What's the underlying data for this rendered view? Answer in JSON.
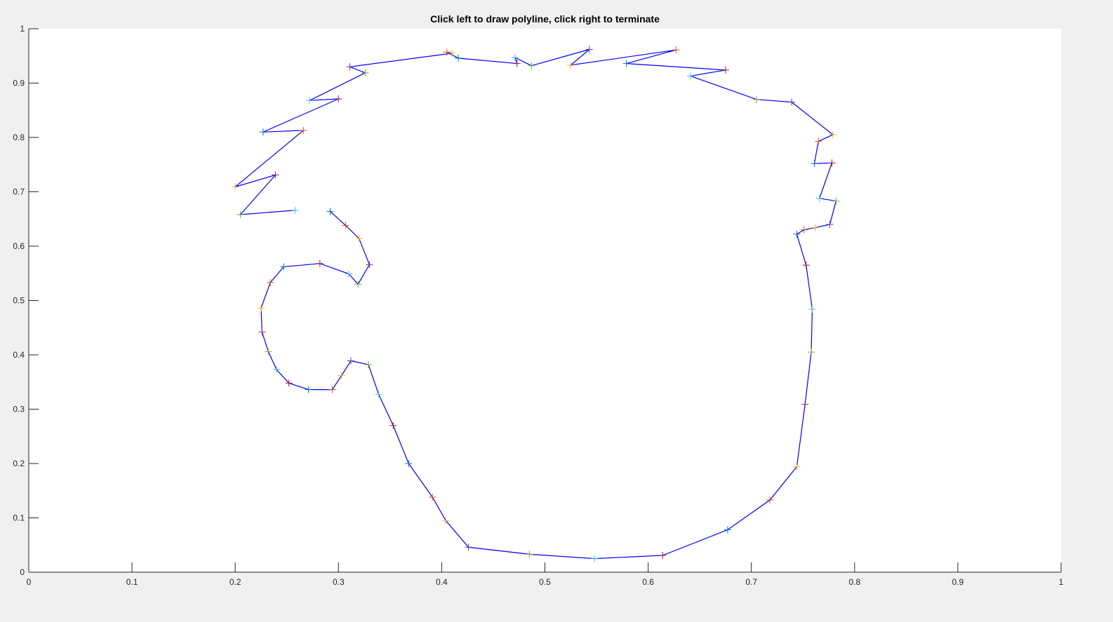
{
  "chart_data": {
    "type": "line",
    "title": "Click left to draw polyline, click right to terminate",
    "xlabel": "",
    "ylabel": "",
    "xlim": [
      0,
      1
    ],
    "ylim": [
      0,
      1
    ],
    "xticks": [
      "0",
      "0.1",
      "0.2",
      "0.3",
      "0.4",
      "0.5",
      "0.6",
      "0.7",
      "0.8",
      "0.9",
      "1"
    ],
    "yticks": [
      "0",
      "0.1",
      "0.2",
      "0.3",
      "0.4",
      "0.5",
      "0.6",
      "0.7",
      "0.8",
      "0.9",
      "1"
    ],
    "grid": false,
    "line_color": "#0000ff",
    "marker": "+",
    "marker_colors": [
      "#0072bd",
      "#d95319",
      "#edb120",
      "#7e2f8e",
      "#77ac30",
      "#4dbeee",
      "#a2142f"
    ],
    "series": [
      {
        "x": [
          0.292,
          0.307,
          0.32,
          0.33,
          0.319,
          0.31,
          0.282,
          0.247,
          0.234,
          0.225,
          0.226,
          0.232,
          0.24,
          0.252,
          0.271,
          0.294,
          0.303,
          0.312,
          0.329,
          0.339,
          0.353,
          0.368,
          0.391,
          0.404,
          0.426,
          0.485,
          0.548,
          0.614,
          0.677,
          0.718,
          0.744,
          0.752,
          0.758,
          0.759,
          0.753,
          0.744,
          0.751,
          0.762,
          0.776,
          0.782,
          0.766,
          0.778,
          0.761,
          0.765,
          0.779,
          0.739,
          0.705,
          0.641,
          0.675,
          0.579,
          0.627,
          0.525,
          0.543,
          0.487,
          0.471,
          0.473,
          0.416,
          0.405,
          0.41,
          0.311,
          0.326,
          0.272,
          0.3,
          0.227,
          0.266,
          0.2,
          0.239,
          0.205,
          0.258
        ],
        "y": [
          0.664,
          0.638,
          0.614,
          0.566,
          0.53,
          0.549,
          0.568,
          0.562,
          0.533,
          0.486,
          0.442,
          0.406,
          0.373,
          0.348,
          0.336,
          0.336,
          0.362,
          0.389,
          0.382,
          0.327,
          0.27,
          0.2,
          0.138,
          0.095,
          0.046,
          0.033,
          0.025,
          0.031,
          0.078,
          0.133,
          0.194,
          0.309,
          0.405,
          0.484,
          0.565,
          0.622,
          0.63,
          0.634,
          0.64,
          0.683,
          0.688,
          0.753,
          0.752,
          0.793,
          0.805,
          0.865,
          0.87,
          0.913,
          0.924,
          0.936,
          0.961,
          0.933,
          0.962,
          0.932,
          0.947,
          0.936,
          0.946,
          0.957,
          0.955,
          0.93,
          0.919,
          0.868,
          0.871,
          0.81,
          0.813,
          0.709,
          0.731,
          0.658,
          0.666
        ]
      }
    ]
  }
}
